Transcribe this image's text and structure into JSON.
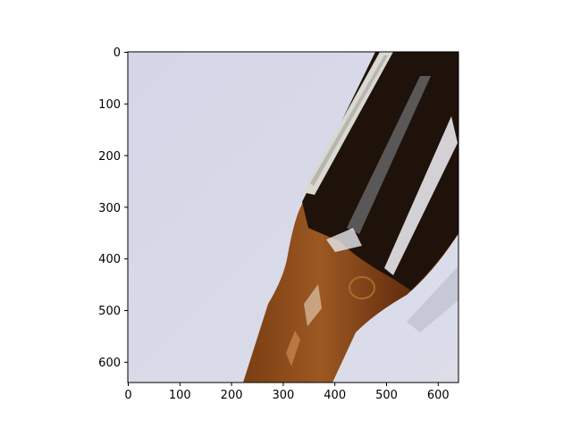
{
  "figure": {
    "kind": "image-plot",
    "subject": "brown glass bottle",
    "colors": {
      "background": "#d6d8e8",
      "glass_dark": "#1e120b",
      "glass_brown": "#6b3510",
      "glass_amber": "#9a5a22",
      "highlight": "#f3f3f7",
      "label": "#d9d8d2"
    }
  },
  "chart_data": {
    "type": "image",
    "title": "",
    "xlabel": "",
    "ylabel": "",
    "xlim": [
      0,
      640
    ],
    "ylim": [
      640,
      0
    ],
    "x_ticks": [
      "0",
      "100",
      "200",
      "300",
      "400",
      "500",
      "600"
    ],
    "y_ticks": [
      "0",
      "100",
      "200",
      "300",
      "400",
      "500",
      "600"
    ],
    "grid": false
  }
}
